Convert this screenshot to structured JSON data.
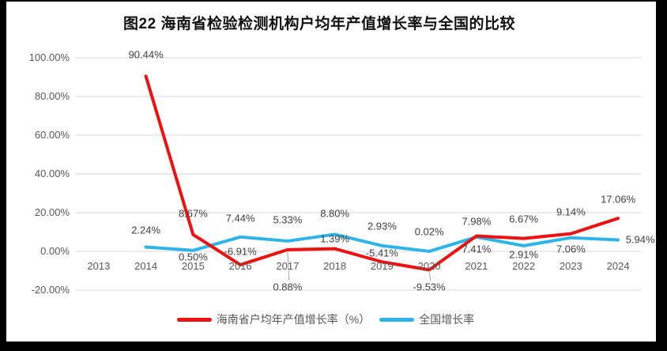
{
  "frame": {
    "title": "图22  海南省检验检测机构户均年产值增长率与全国的比较"
  },
  "chart_data": {
    "type": "line",
    "title": "图22  海南省检验检测机构户均年产值增长率与全国的比较",
    "categories": [
      "2013",
      "2014",
      "2015",
      "2016",
      "2017",
      "2018",
      "2019",
      "2020",
      "2021",
      "2022",
      "2023",
      "2024"
    ],
    "series": [
      {
        "name": "海南省户均年产值增长率（%）",
        "color": "#ee1111",
        "values": [
          null,
          90.44,
          8.67,
          -6.91,
          0.88,
          1.39,
          -5.41,
          -9.53,
          7.98,
          6.67,
          9.14,
          17.06
        ]
      },
      {
        "name": "全国增长率",
        "color": "#2fb4e9",
        "values": [
          null,
          2.24,
          0.5,
          7.44,
          5.33,
          8.8,
          2.93,
          0.02,
          7.41,
          2.91,
          7.06,
          5.94
        ]
      }
    ],
    "ylim": [
      -20,
      100
    ],
    "ytick_step": 20,
    "ytick_labels": [
      "100.00%",
      "80.00%",
      "60.00%",
      "40.00%",
      "20.00%",
      "0.00%",
      "-20.00%"
    ],
    "value_suffix": "%",
    "grid": "horizontal",
    "legend_position": "bottom"
  },
  "colors": {
    "gridline": "#d9d9d9",
    "leader_line": "#a6a6a6",
    "tick_text": "#595959",
    "data_label_text": "#3f3f3f",
    "frame_border": "#000000"
  }
}
